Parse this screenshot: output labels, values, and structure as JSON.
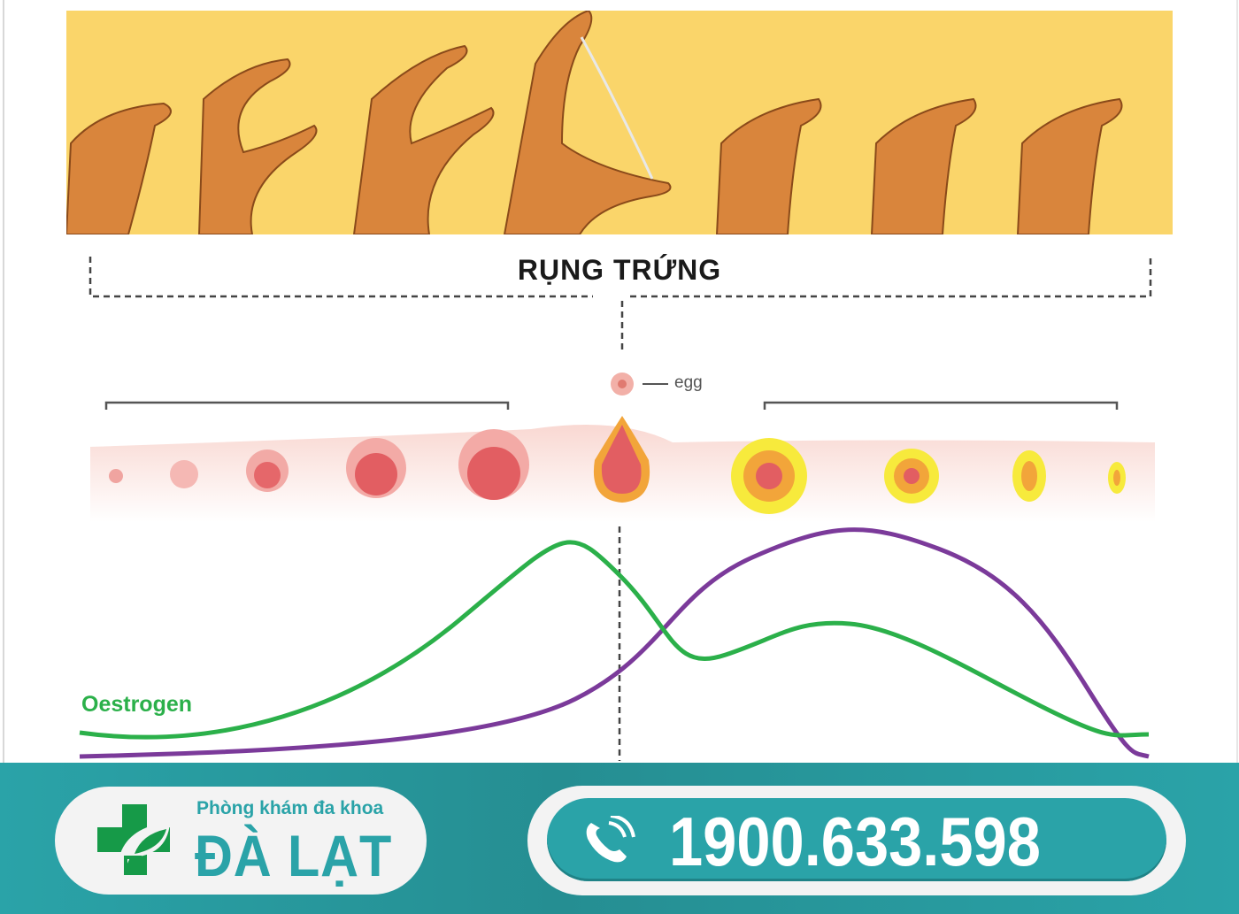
{
  "title": "RỤNG TRỨNG",
  "egg_label": "egg",
  "hormone_label": "Oestrogen",
  "colors": {
    "banner": "#fad56a",
    "oestrogen": "#2bb04a",
    "progesterone": "#7b3a9a",
    "brand": "#2aa3a8",
    "logo_green": "#169a48"
  },
  "footer": {
    "logo_subtitle": "Phòng khám đa khoa",
    "logo_name": "ĐÀ LẠT",
    "phone_icon": "phone-icon",
    "phone": "1900.633.598"
  }
}
